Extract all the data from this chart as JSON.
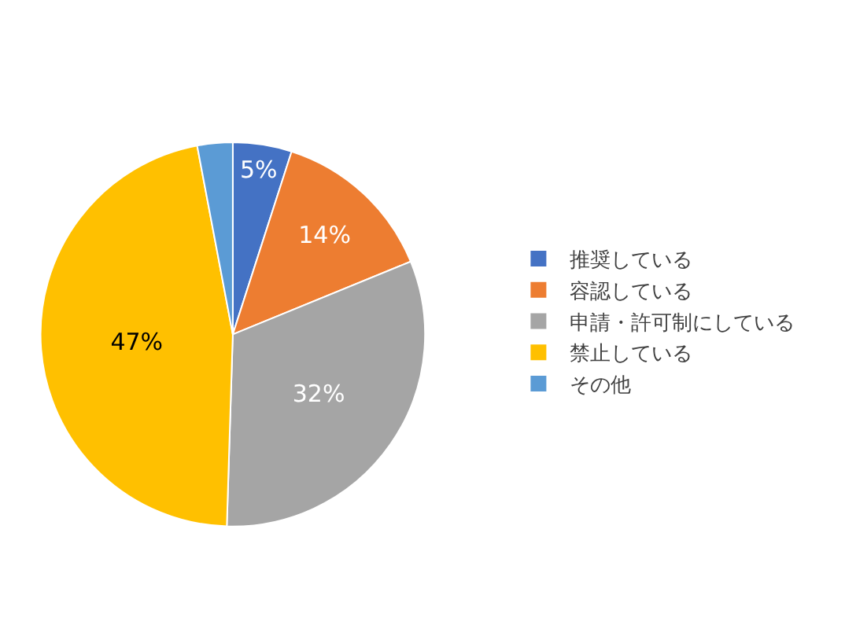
{
  "chart_data": {
    "type": "pie",
    "categories": [
      "推奨している",
      "容認している",
      "申請・許可制にしている",
      "禁止している",
      "その他"
    ],
    "values": [
      5,
      14,
      32,
      47,
      3
    ],
    "value_labels": [
      "5%",
      "14%",
      "32%",
      "47%",
      null
    ],
    "colors": [
      "#4472c4",
      "#ed7d31",
      "#a5a5a5",
      "#ffc000",
      "#5b9bd5"
    ],
    "legend": "right"
  }
}
